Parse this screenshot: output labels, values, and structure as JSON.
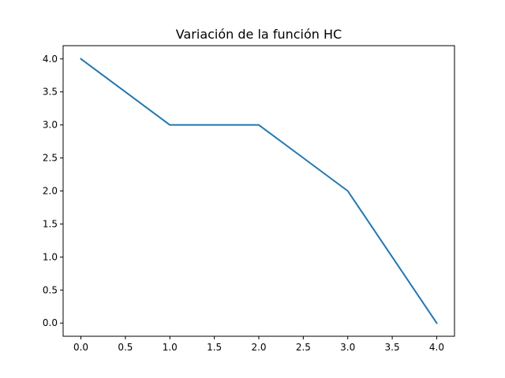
{
  "chart_data": {
    "type": "line",
    "title": "Variación de la función HC",
    "xlabel": "",
    "ylabel": "",
    "xlim": [
      -0.2,
      4.2
    ],
    "ylim": [
      -0.2,
      4.2
    ],
    "x_ticks": [
      "0.0",
      "0.5",
      "1.0",
      "1.5",
      "2.0",
      "2.5",
      "3.0",
      "3.5",
      "4.0"
    ],
    "y_ticks": [
      "0.0",
      "0.5",
      "1.0",
      "1.5",
      "2.0",
      "2.5",
      "3.0",
      "3.5",
      "4.0"
    ],
    "grid": false,
    "series": [
      {
        "color": "#1f77b4",
        "x": [
          0,
          1,
          2,
          3,
          4
        ],
        "y": [
          4,
          3,
          3,
          2,
          0
        ]
      }
    ]
  }
}
